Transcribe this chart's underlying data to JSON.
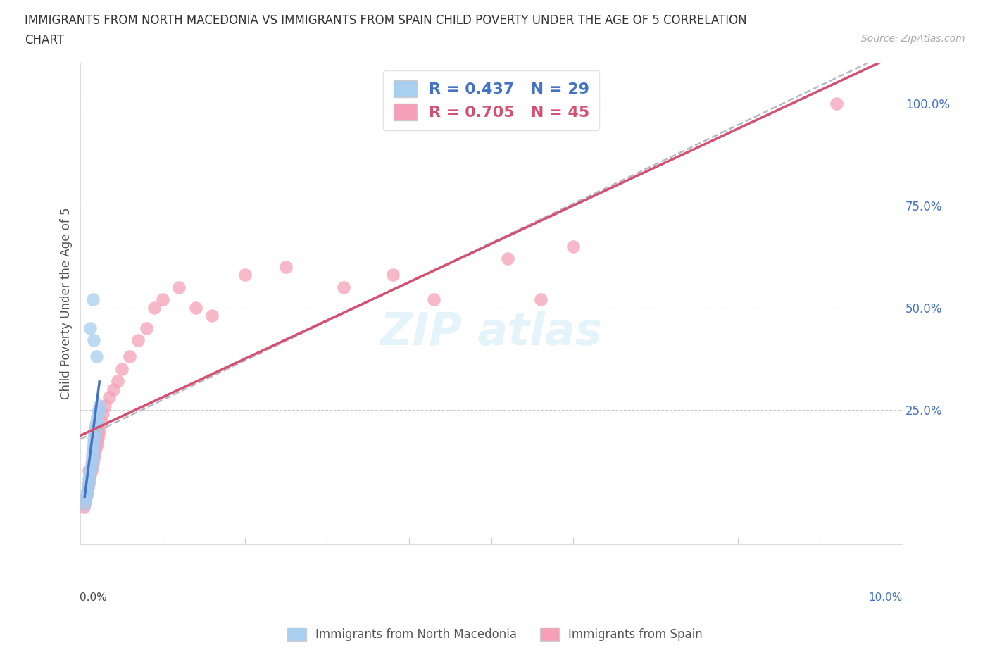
{
  "title_line1": "IMMIGRANTS FROM NORTH MACEDONIA VS IMMIGRANTS FROM SPAIN CHILD POVERTY UNDER THE AGE OF 5 CORRELATION",
  "title_line2": "CHART",
  "source": "Source: ZipAtlas.com",
  "ylabel": "Child Poverty Under the Age of 5",
  "xlim": [
    0.0,
    0.1
  ],
  "ylim": [
    -0.08,
    1.1
  ],
  "legend1_label": "R = 0.437   N = 29",
  "legend2_label": "R = 0.705   N = 45",
  "color_blue": "#a8cef0",
  "color_pink": "#f5a0b8",
  "color_blue_text": "#4472c4",
  "color_pink_text": "#d45070",
  "color_trend_blue": "#4472c4",
  "color_trend_pink": "#d45070",
  "color_trend_gray": "#b8b8c8",
  "legend_bottom_label1": "Immigrants from North Macedonia",
  "legend_bottom_label2": "Immigrants from Spain",
  "ytick_vals": [
    0.0,
    0.25,
    0.5,
    0.75,
    1.0
  ],
  "ytick_labels": [
    "",
    "25.0%",
    "50.0%",
    "75.0%",
    "100.0%"
  ],
  "macedonia_x": [
    0.0005,
    0.0006,
    0.0007,
    0.0008,
    0.0009,
    0.001,
    0.001,
    0.0011,
    0.0012,
    0.0013,
    0.0013,
    0.0014,
    0.0014,
    0.0015,
    0.0015,
    0.0016,
    0.0016,
    0.0017,
    0.0018,
    0.0018,
    0.0019,
    0.002,
    0.0021,
    0.0022,
    0.0023,
    0.0012,
    0.0015,
    0.0016,
    0.0019
  ],
  "macedonia_y": [
    0.02,
    0.03,
    0.04,
    0.05,
    0.06,
    0.07,
    0.08,
    0.09,
    0.1,
    0.11,
    0.12,
    0.13,
    0.14,
    0.15,
    0.16,
    0.17,
    0.18,
    0.19,
    0.2,
    0.21,
    0.22,
    0.23,
    0.24,
    0.25,
    0.26,
    0.45,
    0.52,
    0.42,
    0.38
  ],
  "spain_x": [
    0.0004,
    0.0005,
    0.0006,
    0.0007,
    0.0008,
    0.0009,
    0.001,
    0.0011,
    0.0012,
    0.0013,
    0.0014,
    0.0015,
    0.0016,
    0.0017,
    0.0018,
    0.0019,
    0.002,
    0.0021,
    0.0022,
    0.0023,
    0.0025,
    0.0027,
    0.003,
    0.0035,
    0.004,
    0.0045,
    0.005,
    0.006,
    0.007,
    0.008,
    0.009,
    0.01,
    0.012,
    0.014,
    0.016,
    0.02,
    0.025,
    0.032,
    0.038,
    0.043,
    0.052,
    0.056,
    0.001,
    0.06,
    0.092
  ],
  "spain_y": [
    0.01,
    0.02,
    0.03,
    0.04,
    0.05,
    0.06,
    0.07,
    0.08,
    0.09,
    0.1,
    0.11,
    0.12,
    0.13,
    0.14,
    0.15,
    0.16,
    0.17,
    0.18,
    0.19,
    0.2,
    0.22,
    0.24,
    0.26,
    0.28,
    0.3,
    0.32,
    0.35,
    0.38,
    0.42,
    0.45,
    0.5,
    0.52,
    0.55,
    0.5,
    0.48,
    0.58,
    0.6,
    0.55,
    0.58,
    0.52,
    0.62,
    0.52,
    0.1,
    0.65,
    1.0
  ]
}
